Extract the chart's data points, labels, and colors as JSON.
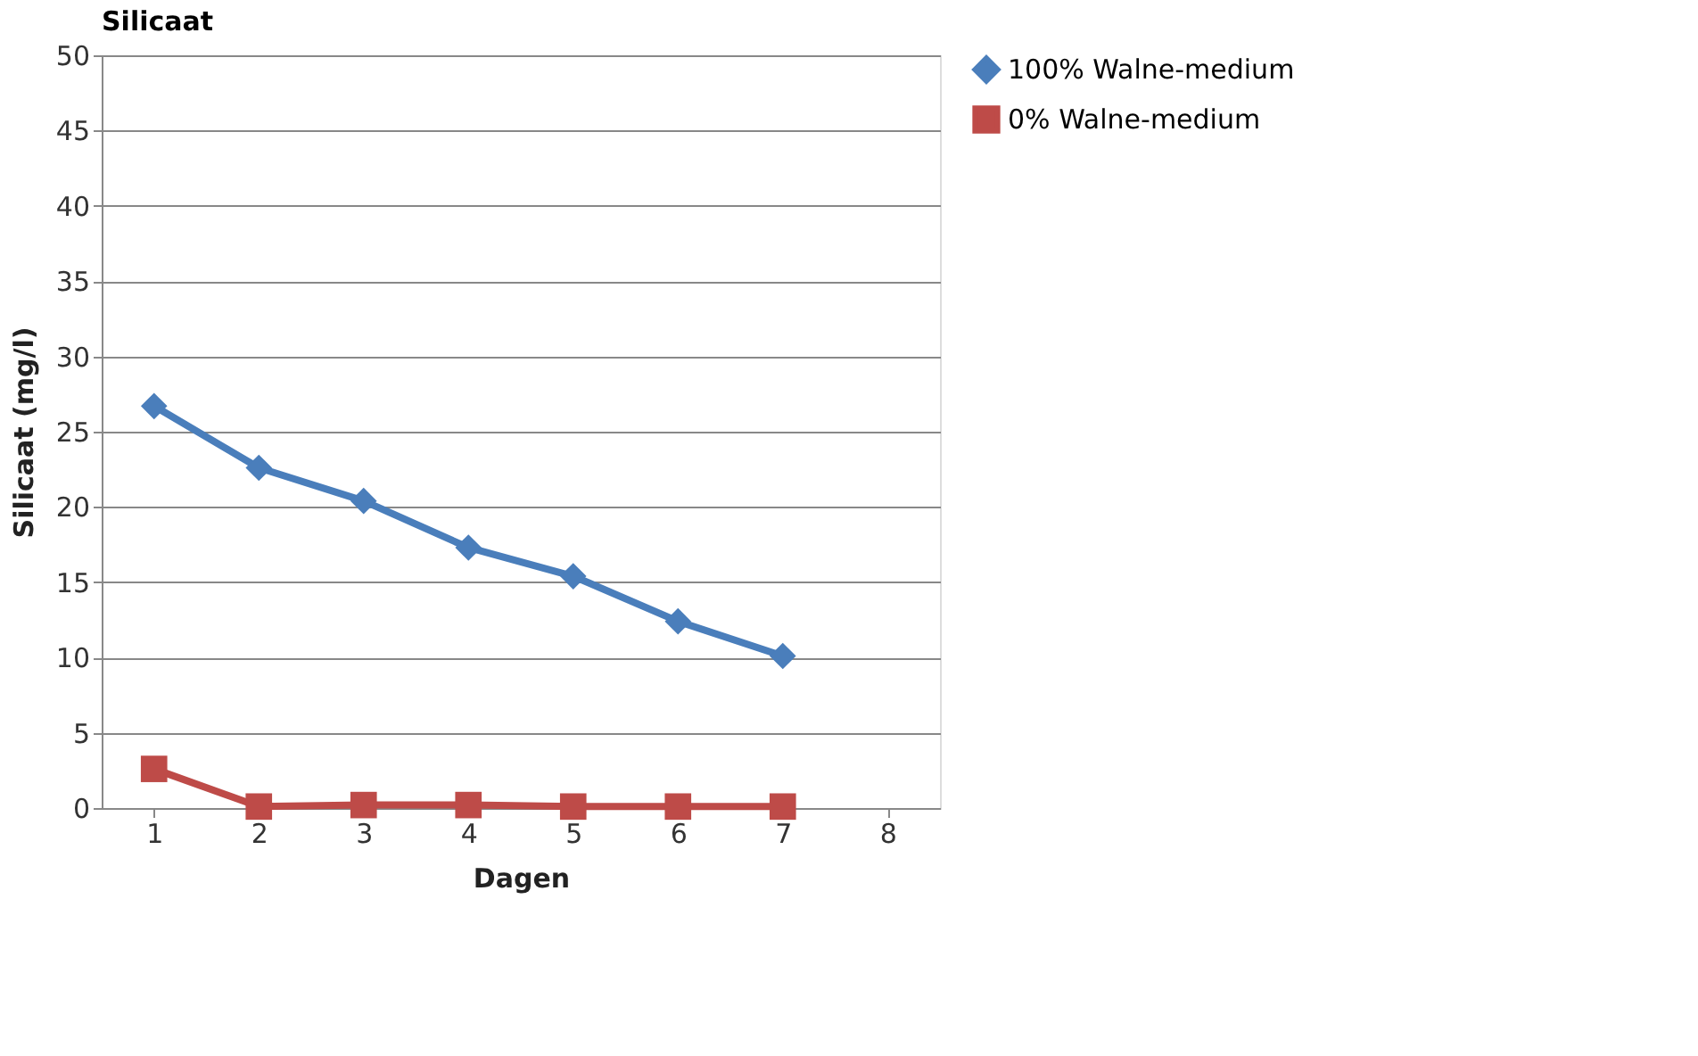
{
  "chart_data": {
    "type": "line",
    "title": "Silicaat",
    "xlabel": "Dagen",
    "ylabel": "Silicaat (mg/l)",
    "categories": [
      "1",
      "2",
      "3",
      "4",
      "5",
      "6",
      "7",
      "8"
    ],
    "series": [
      {
        "name": "100% Walne-medium",
        "color": "#4a7ebb",
        "marker": "diamond",
        "values": [
          26.7,
          22.6,
          20.4,
          17.3,
          15.4,
          12.4,
          10.1,
          null
        ]
      },
      {
        "name": "0% Walne-medium",
        "color": "#be4b48",
        "marker": "square",
        "values": [
          2.6,
          0.1,
          0.2,
          0.2,
          0.1,
          0.1,
          0.1,
          null
        ]
      }
    ],
    "ylim": [
      0,
      50
    ],
    "yticks": [
      0,
      5,
      10,
      15,
      20,
      25,
      30,
      35,
      40,
      45,
      50
    ],
    "grid": "y",
    "legend": "right",
    "line_style": "solid"
  }
}
